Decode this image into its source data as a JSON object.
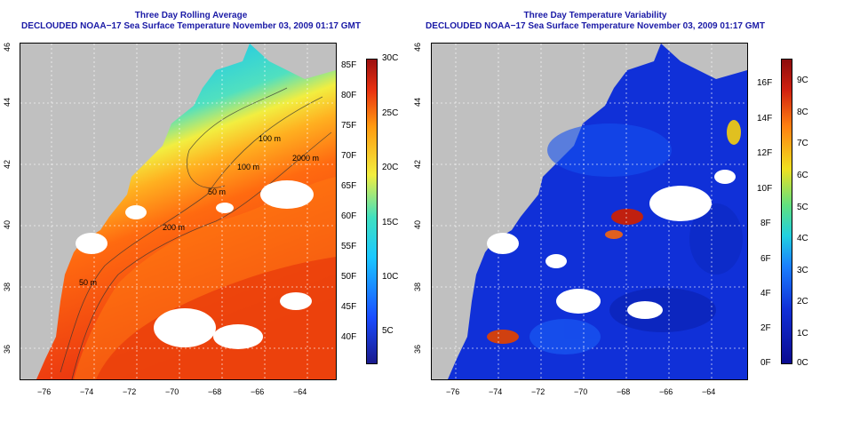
{
  "left_panel": {
    "title_line1": "Three Day Rolling Average",
    "title_line2": "DECLOUDED NOAA−17 Sea Surface Temperature November 03, 2009 01:17 GMT",
    "contour_labels": [
      "100 m",
      "100 m",
      "50 m",
      "2000 m",
      "200 m",
      "50 m"
    ],
    "colorbar_f": [
      "85F",
      "80F",
      "75F",
      "70F",
      "65F",
      "60F",
      "55F",
      "50F",
      "45F",
      "40F"
    ],
    "colorbar_c": [
      "30C",
      "25C",
      "20C",
      "15C",
      "10C",
      "5C"
    ]
  },
  "right_panel": {
    "title_line1": "Three Day Temperature Variability",
    "title_line2": "DECLOUDED NOAA−17 Sea Surface Temperature November 03, 2009 01:17 GMT",
    "colorbar_f": [
      "16F",
      "14F",
      "12F",
      "10F",
      "8F",
      "6F",
      "4F",
      "2F",
      "0F"
    ],
    "colorbar_c": [
      "9C",
      "8C",
      "7C",
      "6C",
      "5C",
      "4C",
      "3C",
      "2C",
      "1C",
      "0C"
    ]
  },
  "x_ticks": [
    "−76",
    "−74",
    "−72",
    "−70",
    "−68",
    "−66",
    "−64"
  ],
  "y_ticks": [
    "46",
    "44",
    "42",
    "40",
    "38",
    "36"
  ],
  "colors": {
    "title": "#1a1aa6",
    "land": "#c0c0c0",
    "cloud": "#ffffff"
  }
}
